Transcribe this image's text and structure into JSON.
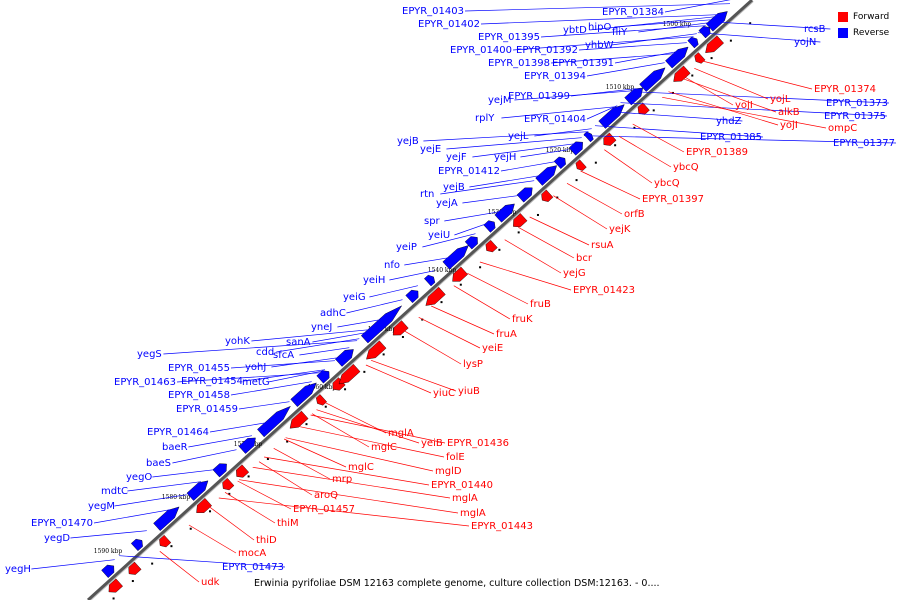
{
  "caption": "Erwinia pyrifoliae DSM 12163 complete genome, culture collection DSM:12163. - 0....",
  "legend": [
    {
      "label": "Forward",
      "color": "#ff0000"
    },
    {
      "label": "Reverse",
      "color": "#0000ff"
    }
  ],
  "colors": {
    "forward": "#ff0000",
    "reverse": "#0000ff",
    "axis": "#555555"
  },
  "ticks": [
    "1500 kbp",
    "1510 kbp",
    "1520 kbp",
    "1530 kbp",
    "1540 kbp",
    "1550 kbp",
    "1560 kbp",
    "1570 kbp",
    "1580 kbp",
    "1590 kbp"
  ],
  "reverse_labels": [
    "EPYR_01403",
    "EPYR_01402",
    "EPYR_01395",
    "EPYR_01400",
    "EPYR_01392",
    "EPYR_01398",
    "EPYR_01391",
    "EPYR_01394",
    "EPYR_01399",
    "yejM",
    "rplY",
    "EPYR_01404",
    "yejL",
    "yejB",
    "yejE",
    "yejF",
    "yejH",
    "EPYR_01412",
    "yejB",
    "rtn",
    "yejA",
    "spr",
    "yeiU",
    "yeiP",
    "nfo",
    "yeiH",
    "yeiG",
    "adhC",
    "yneJ",
    "sanA",
    "yohK",
    "cdd",
    "sfcA",
    "yohJ",
    "metG",
    "yegS",
    "EPYR_01455",
    "EPYR_01463",
    "EPYR_01454",
    "EPYR_01458",
    "EPYR_01459",
    "EPYR_01464",
    "baeR",
    "baeS",
    "yegO",
    "mdtC",
    "yegM",
    "EPYR_01470",
    "yegD",
    "yegH",
    "EPYR_01473",
    "ybtD",
    "hipO",
    "fliY",
    "yhbW",
    "EPYR_01384",
    "rcsB",
    "yojN",
    "EPYR_01373",
    "EPYR_01375",
    "EPYR_01377",
    "yhdZ",
    "EPYR_01385"
  ],
  "forward_labels": [
    "EPYR_01374",
    "yojL",
    "alkB",
    "yojI",
    "ompC",
    "yojI",
    "EPYR_01389",
    "ybcQ",
    "ybcQ",
    "EPYR_01397",
    "orfB",
    "yejK",
    "rsuA",
    "bcr",
    "yejG",
    "EPYR_01423",
    "fruB",
    "fruK",
    "fruA",
    "yeiE",
    "lysP",
    "yiuC",
    "yiuB",
    "yeiB",
    "EPYR_01436",
    "mglA",
    "mglC",
    "mglC",
    "folE",
    "mglD",
    "EPYR_01440",
    "mglA",
    "mglA",
    "EPYR_01443",
    "mrp",
    "aroQ",
    "EPYR_01457",
    "thiM",
    "thiD",
    "mocA",
    "udk"
  ]
}
